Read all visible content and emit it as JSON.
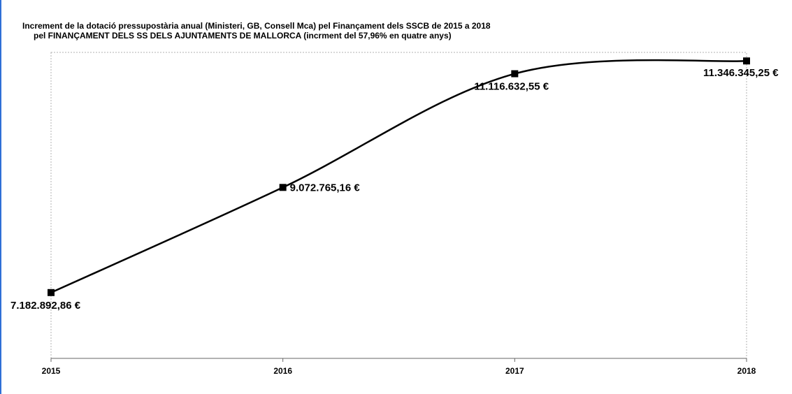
{
  "chart_data": {
    "type": "line",
    "title_line1": "Increment de la dotació pressupostària anual (Ministeri, GB, Consell Mca) pel Finançament dels SSCB de 2015 a 2018",
    "title_line2": "pel FINANÇAMENT DELS SS DELS AJUNTAMENTS DE MALLORCA (incrment del 57,96% en quatre anys)",
    "categories": [
      "2015",
      "2016",
      "2017",
      "2018"
    ],
    "values": [
      7182892.86,
      9072765.16,
      11116632.55,
      11346345.25
    ],
    "data_labels": [
      "7.182.892,86 €",
      "9.072.765,16 €",
      "11.116.632,55 €",
      "11.346.345,25 €"
    ],
    "xlabel": "",
    "ylabel": "",
    "ylim": [
      6000000,
      11500000
    ],
    "grid": false,
    "smoothed": true,
    "line_color": "#000000",
    "marker": "square"
  }
}
